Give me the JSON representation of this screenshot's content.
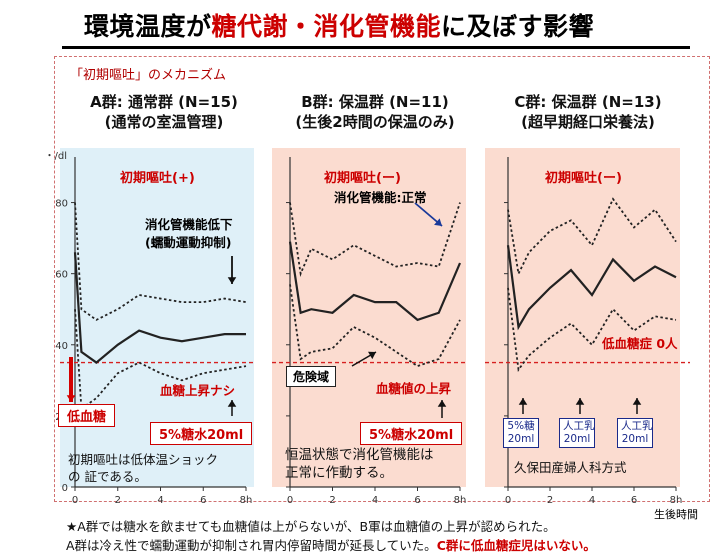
{
  "title": {
    "pre": "環境温度が",
    "hl": "糖代謝・消化管機能",
    "post": "に及ぼす影響"
  },
  "subtitle": "「初期嘔吐」のメカニズム",
  "groups": [
    {
      "line1": "A群: 通常群 (N=15)",
      "line2": "(通常の室温管理)",
      "vomit": "初期嘔吐(+)"
    },
    {
      "line1": "B群: 保温群 (N=11)",
      "line2": "(生後2時間の保温のみ)",
      "vomit": "初期嘔吐(ー)"
    },
    {
      "line1": "C群: 保温群 (N=13)",
      "line2": "(超早期経口栄養法)",
      "vomit": "初期嘔吐(ー)"
    }
  ],
  "annotations": {
    "a_gi_low_1": "消化管機能低下",
    "a_gi_low_2": "(蠕動運動抑制)",
    "a_hypo": "低血糖",
    "a_no_rise": "血糖上昇ナシ",
    "a_glucose": "5%糖水20ml",
    "a_note_1": "初期嘔吐は低体温ショック",
    "a_note_2": "の 証である。",
    "b_gi_normal": "消化管機能:正常",
    "b_danger": "危険域",
    "b_rise": "血糖値の上昇",
    "b_glucose": "5%糖水20ml",
    "b_note_1": "恒温状態で消化管機能は",
    "b_note_2": "正常に作動する。",
    "c_hypo_zero": "低血糖症 0人",
    "c_feed1_1": "5%糖",
    "c_feed1_2": "20ml",
    "c_feed2_1": "人工乳",
    "c_feed2_2": "20ml",
    "c_feed3_1": "人工乳",
    "c_feed3_2": "20ml",
    "c_method": "久保田産婦人科方式"
  },
  "footer": {
    "line1": "★A群では糖水を飲ませても血糖値は上がらないが、B軍は血糖値の上昇が認められた。",
    "line2_pre": "A群は冷え性で蠕動運動が抑制され胃内停留時間が延長していた。",
    "line2_hl": "C群に低血糖症児はいない。"
  },
  "corner_label": "生後時間",
  "chart_data": [
    {
      "type": "line",
      "name": "A群",
      "y_unit": "・/dl",
      "ylim": [
        0,
        90
      ],
      "xlim": [
        0,
        8
      ],
      "yticks": [
        "0",
        "20",
        "40",
        "60",
        "80"
      ],
      "xticks": [
        "0",
        "2",
        "4",
        "6",
        "8h"
      ],
      "threshold": 35,
      "bg": "#dff0f8",
      "series": [
        {
          "role": "mean",
          "x": [
            0,
            0.3,
            1,
            2,
            3,
            4,
            5,
            6,
            7,
            8
          ],
          "y": [
            66,
            38,
            35,
            40,
            44,
            42,
            41,
            42,
            43,
            43
          ]
        },
        {
          "role": "upper",
          "x": [
            0,
            0.3,
            1,
            2,
            3,
            4,
            5,
            6,
            7,
            8
          ],
          "y": [
            80,
            50,
            47,
            50,
            54,
            53,
            52,
            52,
            53,
            52
          ]
        },
        {
          "role": "lower",
          "x": [
            0,
            0.3,
            1,
            2,
            3,
            4,
            5,
            6,
            7,
            8
          ],
          "y": [
            50,
            22,
            25,
            32,
            35,
            32,
            30,
            32,
            33,
            34
          ]
        }
      ]
    },
    {
      "type": "line",
      "name": "B群",
      "y_unit": "",
      "ylim": [
        0,
        90
      ],
      "xlim": [
        0,
        8
      ],
      "yticks": [],
      "xticks": [
        "0",
        "2",
        "4",
        "6",
        "8h"
      ],
      "threshold": 35,
      "bg": "#fbdcd0",
      "series": [
        {
          "role": "mean",
          "x": [
            0,
            0.5,
            1,
            2,
            3,
            4,
            5,
            6,
            7,
            8
          ],
          "y": [
            69,
            49,
            50,
            49,
            54,
            52,
            52,
            47,
            49,
            63
          ]
        },
        {
          "role": "upper",
          "x": [
            0,
            0.5,
            1,
            2,
            3,
            4,
            5,
            6,
            7,
            8
          ],
          "y": [
            80,
            60,
            67,
            64,
            68,
            65,
            62,
            63,
            62,
            80
          ]
        },
        {
          "role": "lower",
          "x": [
            0,
            0.5,
            1,
            2,
            3,
            4,
            5,
            6,
            7,
            8
          ],
          "y": [
            57,
            36,
            38,
            39,
            45,
            42,
            38,
            34,
            36,
            47
          ]
        }
      ]
    },
    {
      "type": "line",
      "name": "C群",
      "y_unit": "",
      "ylim": [
        0,
        90
      ],
      "xlim": [
        0,
        8
      ],
      "yticks": [],
      "xticks": [
        "0",
        "2",
        "4",
        "6",
        "8h"
      ],
      "threshold": 35,
      "bg": "#fbdcd0",
      "series": [
        {
          "role": "mean",
          "x": [
            0,
            0.5,
            1,
            2,
            3,
            4,
            5,
            6,
            7,
            8
          ],
          "y": [
            68,
            45,
            50,
            56,
            61,
            54,
            64,
            58,
            62,
            59
          ]
        },
        {
          "role": "upper",
          "x": [
            0,
            0.5,
            1,
            2,
            3,
            4,
            5,
            6,
            7,
            8
          ],
          "y": [
            78,
            60,
            66,
            72,
            75,
            68,
            81,
            73,
            78,
            69
          ]
        },
        {
          "role": "lower",
          "x": [
            0,
            0.5,
            1,
            2,
            3,
            4,
            5,
            6,
            7,
            8
          ],
          "y": [
            56,
            33,
            37,
            42,
            46,
            40,
            50,
            44,
            48,
            47
          ]
        }
      ]
    }
  ]
}
